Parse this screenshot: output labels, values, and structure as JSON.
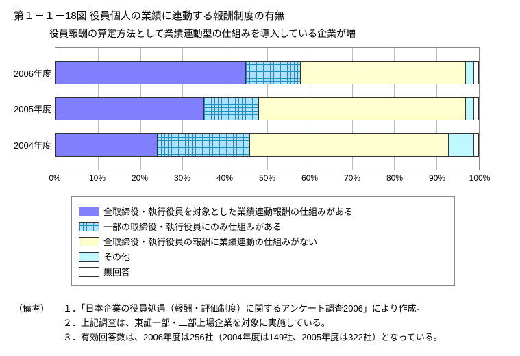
{
  "title": "第１－１－18図 役員個人の業績に連動する報酬制度の有無",
  "subtitle": "役員報酬の算定方法として業績連動型の仕組みを導入している企業が増",
  "chart": {
    "type": "stacked-bar-horizontal",
    "xlim": [
      0,
      100
    ],
    "xtick_step": 10,
    "xtick_suffix": "%",
    "grid_color": "#bbbbbb",
    "border_color": "#888888",
    "background_color": "#ffffff",
    "bar_border_color": "#333333",
    "categories": [
      "2006年度",
      "2005年度",
      "2004年度"
    ],
    "series": [
      {
        "label": "全取締役・執行役員を対象とした業績連動報酬の仕組みがある",
        "fill": "solid-purple",
        "color": "#8080ff"
      },
      {
        "label": "一部の取締役・執行役員にのみ仕組みがある",
        "fill": "crosshatch-cyan",
        "color": "#b0e0ff",
        "hatch_color": "#2090c0"
      },
      {
        "label": "全取締役・執行役員の報酬に業績連動の仕組みがない",
        "fill": "yellow",
        "color": "#ffffd0"
      },
      {
        "label": "その他",
        "fill": "cyan",
        "color": "#c0f8ff"
      },
      {
        "label": "無回答",
        "fill": "white",
        "color": "#ffffff"
      }
    ],
    "values": [
      [
        45,
        13,
        39,
        2,
        1
      ],
      [
        35,
        13,
        49,
        2,
        1
      ],
      [
        24,
        22,
        47,
        6,
        1
      ]
    ],
    "label_fontsize": 13,
    "tick_fontsize": 12
  },
  "notes": {
    "head": "（備考）",
    "items": [
      "１．「日本企業の役員処遇（報酬・評価制度）に関するアンケート調査2006」により作成。",
      "２．上記調査は、東証一部・二部上場企業を対象に実施している。",
      "３．有効回答数は、2006年度は256社（2004年度は149社、2005年度は322社）となっている。"
    ]
  }
}
